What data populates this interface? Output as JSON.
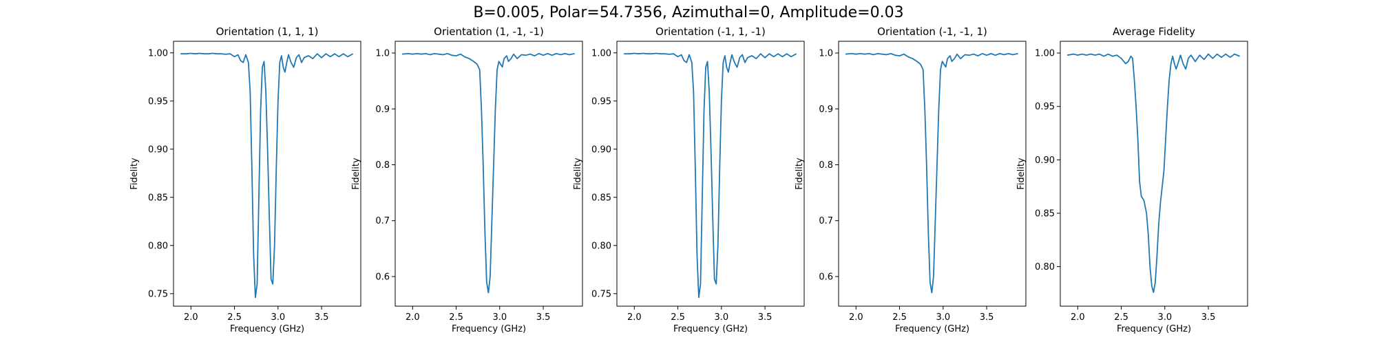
{
  "figure": {
    "title": "B=0.005, Polar=54.7356, Azimuthal=0, Amplitude=0.03",
    "line_color": "#1f77b4"
  },
  "chart_data": [
    {
      "type": "line",
      "title": "Orientation (1, 1, 1)",
      "xlabel": "Frequency (GHz)",
      "ylabel": "Fidelity",
      "xlim": [
        1.8,
        3.95
      ],
      "ylim": [
        0.737,
        1.012
      ],
      "xticks": [
        2.0,
        2.5,
        3.0,
        3.5
      ],
      "xtick_labels": [
        "2.0",
        "2.5",
        "3.0",
        "3.5"
      ],
      "yticks": [
        0.75,
        0.8,
        0.85,
        0.9,
        0.95,
        1.0
      ],
      "ytick_labels": [
        "0.75",
        "0.80",
        "0.85",
        "0.90",
        "0.95",
        "1.00"
      ],
      "grid": false,
      "series": [
        {
          "color": "#1f77b4",
          "x": [
            1.88,
            1.95,
            2.0,
            2.05,
            2.1,
            2.15,
            2.2,
            2.25,
            2.3,
            2.35,
            2.4,
            2.45,
            2.5,
            2.54,
            2.57,
            2.6,
            2.63,
            2.66,
            2.68,
            2.7,
            2.72,
            2.74,
            2.76,
            2.78,
            2.8,
            2.82,
            2.84,
            2.86,
            2.88,
            2.9,
            2.92,
            2.94,
            2.96,
            2.98,
            3.0,
            3.02,
            3.04,
            3.06,
            3.08,
            3.1,
            3.12,
            3.15,
            3.18,
            3.21,
            3.24,
            3.27,
            3.3,
            3.35,
            3.4,
            3.45,
            3.5,
            3.55,
            3.6,
            3.65,
            3.7,
            3.75,
            3.8,
            3.86
          ],
          "y": [
            0.999,
            0.999,
            0.9995,
            0.999,
            0.9995,
            0.999,
            0.999,
            0.9995,
            0.999,
            0.999,
            0.9985,
            0.999,
            0.996,
            0.998,
            0.992,
            0.99,
            0.998,
            0.99,
            0.96,
            0.88,
            0.79,
            0.746,
            0.76,
            0.85,
            0.94,
            0.985,
            0.991,
            0.96,
            0.9,
            0.83,
            0.765,
            0.76,
            0.8,
            0.88,
            0.95,
            0.99,
            0.997,
            0.985,
            0.98,
            0.99,
            0.998,
            0.99,
            0.985,
            0.995,
            0.998,
            0.99,
            0.995,
            0.997,
            0.994,
            0.999,
            0.995,
            0.999,
            0.996,
            0.999,
            0.996,
            0.999,
            0.996,
            0.999
          ]
        }
      ]
    },
    {
      "type": "line",
      "title": "Orientation (1, -1, -1)",
      "xlabel": "Frequency (GHz)",
      "ylabel": "Fidelity",
      "xlim": [
        1.8,
        3.95
      ],
      "ylim": [
        0.547,
        1.021
      ],
      "xticks": [
        2.0,
        2.5,
        3.0,
        3.5
      ],
      "xtick_labels": [
        "2.0",
        "2.5",
        "3.0",
        "3.5"
      ],
      "yticks": [
        0.6,
        0.7,
        0.8,
        0.9,
        1.0
      ],
      "ytick_labels": [
        "0.6",
        "0.7",
        "0.8",
        "0.9",
        "1.0"
      ],
      "grid": false,
      "series": [
        {
          "color": "#1f77b4",
          "x": [
            1.88,
            1.95,
            2.0,
            2.05,
            2.1,
            2.15,
            2.2,
            2.25,
            2.3,
            2.35,
            2.4,
            2.45,
            2.5,
            2.55,
            2.6,
            2.65,
            2.7,
            2.74,
            2.77,
            2.79,
            2.81,
            2.83,
            2.85,
            2.87,
            2.89,
            2.91,
            2.93,
            2.95,
            2.97,
            2.99,
            3.01,
            3.03,
            3.05,
            3.08,
            3.1,
            3.13,
            3.16,
            3.2,
            3.25,
            3.3,
            3.35,
            3.4,
            3.45,
            3.5,
            3.55,
            3.6,
            3.65,
            3.7,
            3.75,
            3.8,
            3.86
          ],
          "y": [
            0.998,
            0.999,
            0.998,
            0.999,
            0.998,
            0.999,
            0.997,
            0.999,
            0.998,
            0.997,
            0.999,
            0.996,
            0.995,
            0.998,
            0.993,
            0.99,
            0.985,
            0.98,
            0.97,
            0.9,
            0.8,
            0.68,
            0.59,
            0.571,
            0.6,
            0.7,
            0.8,
            0.9,
            0.97,
            0.985,
            0.98,
            0.975,
            0.99,
            0.995,
            0.985,
            0.99,
            0.998,
            0.99,
            0.997,
            0.996,
            0.998,
            0.995,
            0.999,
            0.996,
            0.999,
            0.996,
            0.999,
            0.997,
            0.999,
            0.997,
            0.999
          ]
        }
      ]
    },
    {
      "type": "line",
      "title": "Orientation (-1, 1, -1)",
      "xlabel": "Frequency (GHz)",
      "ylabel": "Fidelity",
      "xlim": [
        1.8,
        3.95
      ],
      "ylim": [
        0.737,
        1.012
      ],
      "xticks": [
        2.0,
        2.5,
        3.0,
        3.5
      ],
      "xtick_labels": [
        "2.0",
        "2.5",
        "3.0",
        "3.5"
      ],
      "yticks": [
        0.75,
        0.8,
        0.85,
        0.9,
        0.95,
        1.0
      ],
      "ytick_labels": [
        "0.75",
        "0.80",
        "0.85",
        "0.90",
        "0.95",
        "1.00"
      ],
      "grid": false,
      "series": [
        {
          "color": "#1f77b4",
          "x": [
            1.88,
            1.95,
            2.0,
            2.05,
            2.1,
            2.15,
            2.2,
            2.25,
            2.3,
            2.35,
            2.4,
            2.45,
            2.5,
            2.54,
            2.57,
            2.6,
            2.63,
            2.66,
            2.68,
            2.7,
            2.72,
            2.74,
            2.76,
            2.78,
            2.8,
            2.82,
            2.84,
            2.86,
            2.88,
            2.9,
            2.92,
            2.94,
            2.96,
            2.98,
            3.0,
            3.02,
            3.04,
            3.06,
            3.08,
            3.1,
            3.12,
            3.15,
            3.18,
            3.21,
            3.24,
            3.27,
            3.3,
            3.35,
            3.4,
            3.45,
            3.5,
            3.55,
            3.6,
            3.65,
            3.7,
            3.75,
            3.8,
            3.86
          ],
          "y": [
            0.999,
            0.999,
            0.9995,
            0.999,
            0.9995,
            0.999,
            0.999,
            0.9995,
            0.999,
            0.999,
            0.9985,
            0.999,
            0.996,
            0.998,
            0.992,
            0.99,
            0.998,
            0.99,
            0.96,
            0.88,
            0.79,
            0.746,
            0.76,
            0.85,
            0.94,
            0.985,
            0.991,
            0.96,
            0.9,
            0.83,
            0.765,
            0.76,
            0.8,
            0.88,
            0.95,
            0.99,
            0.997,
            0.985,
            0.98,
            0.99,
            0.998,
            0.99,
            0.985,
            0.995,
            0.998,
            0.99,
            0.995,
            0.997,
            0.994,
            0.999,
            0.995,
            0.999,
            0.996,
            0.999,
            0.996,
            0.999,
            0.996,
            0.999
          ]
        }
      ]
    },
    {
      "type": "line",
      "title": "Orientation (-1, -1, 1)",
      "xlabel": "Frequency (GHz)",
      "ylabel": "Fidelity",
      "xlim": [
        1.8,
        3.95
      ],
      "ylim": [
        0.547,
        1.021
      ],
      "xticks": [
        2.0,
        2.5,
        3.0,
        3.5
      ],
      "xtick_labels": [
        "2.0",
        "2.5",
        "3.0",
        "3.5"
      ],
      "yticks": [
        0.6,
        0.7,
        0.8,
        0.9,
        1.0
      ],
      "ytick_labels": [
        "0.6",
        "0.7",
        "0.8",
        "0.9",
        "1.0"
      ],
      "grid": false,
      "series": [
        {
          "color": "#1f77b4",
          "x": [
            1.88,
            1.95,
            2.0,
            2.05,
            2.1,
            2.15,
            2.2,
            2.25,
            2.3,
            2.35,
            2.4,
            2.45,
            2.5,
            2.55,
            2.6,
            2.65,
            2.7,
            2.74,
            2.77,
            2.79,
            2.81,
            2.83,
            2.85,
            2.87,
            2.89,
            2.91,
            2.93,
            2.95,
            2.97,
            2.99,
            3.01,
            3.03,
            3.05,
            3.08,
            3.1,
            3.13,
            3.16,
            3.2,
            3.25,
            3.3,
            3.35,
            3.4,
            3.45,
            3.5,
            3.55,
            3.6,
            3.65,
            3.7,
            3.75,
            3.8,
            3.86
          ],
          "y": [
            0.998,
            0.999,
            0.998,
            0.999,
            0.998,
            0.999,
            0.997,
            0.999,
            0.998,
            0.997,
            0.999,
            0.996,
            0.995,
            0.998,
            0.993,
            0.99,
            0.985,
            0.98,
            0.97,
            0.9,
            0.8,
            0.68,
            0.59,
            0.571,
            0.6,
            0.7,
            0.8,
            0.9,
            0.97,
            0.985,
            0.98,
            0.975,
            0.99,
            0.995,
            0.985,
            0.99,
            0.998,
            0.99,
            0.997,
            0.996,
            0.998,
            0.995,
            0.999,
            0.996,
            0.999,
            0.996,
            0.999,
            0.997,
            0.999,
            0.997,
            0.999
          ]
        }
      ]
    },
    {
      "type": "line",
      "title": "Average Fidelity",
      "xlabel": "Frequency (GHz)",
      "ylabel": "Fidelity",
      "xlim": [
        1.8,
        3.95
      ],
      "ylim": [
        0.763,
        1.011
      ],
      "xticks": [
        2.0,
        2.5,
        3.0,
        3.5
      ],
      "xtick_labels": [
        "2.0",
        "2.5",
        "3.0",
        "3.5"
      ],
      "yticks": [
        0.8,
        0.85,
        0.9,
        0.95,
        1.0
      ],
      "ytick_labels": [
        "0.80",
        "0.85",
        "0.90",
        "0.95",
        "1.00"
      ],
      "grid": false,
      "series": [
        {
          "color": "#1f77b4",
          "x": [
            1.88,
            1.95,
            2.0,
            2.05,
            2.1,
            2.15,
            2.2,
            2.25,
            2.3,
            2.35,
            2.4,
            2.45,
            2.5,
            2.55,
            2.58,
            2.61,
            2.63,
            2.65,
            2.67,
            2.69,
            2.71,
            2.73,
            2.76,
            2.79,
            2.81,
            2.83,
            2.85,
            2.87,
            2.89,
            2.91,
            2.93,
            2.95,
            2.97,
            2.99,
            3.01,
            3.03,
            3.05,
            3.07,
            3.09,
            3.11,
            3.13,
            3.15,
            3.18,
            3.21,
            3.24,
            3.27,
            3.3,
            3.35,
            3.4,
            3.45,
            3.5,
            3.55,
            3.6,
            3.65,
            3.7,
            3.75,
            3.8,
            3.86
          ],
          "y": [
            0.998,
            0.999,
            0.998,
            0.999,
            0.998,
            0.999,
            0.998,
            0.999,
            0.997,
            0.999,
            0.997,
            0.998,
            0.995,
            0.99,
            0.992,
            0.997,
            0.995,
            0.975,
            0.95,
            0.92,
            0.88,
            0.866,
            0.862,
            0.85,
            0.83,
            0.8,
            0.782,
            0.776,
            0.785,
            0.81,
            0.84,
            0.86,
            0.875,
            0.89,
            0.92,
            0.95,
            0.975,
            0.99,
            0.997,
            0.99,
            0.985,
            0.99,
            0.998,
            0.99,
            0.985,
            0.995,
            0.998,
            0.992,
            0.998,
            0.994,
            0.999,
            0.995,
            0.999,
            0.996,
            0.999,
            0.996,
            0.999,
            0.997
          ]
        }
      ]
    }
  ]
}
